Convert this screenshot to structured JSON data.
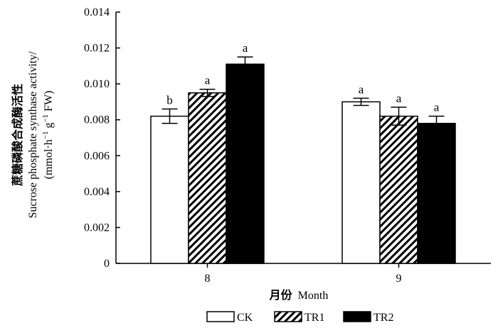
{
  "chart_data": {
    "type": "bar",
    "categories": [
      "8",
      "9"
    ],
    "series": [
      {
        "name": "CK",
        "values": [
          0.0082,
          0.009
        ],
        "errors": [
          0.0004,
          0.0002
        ],
        "letters": [
          "b",
          "a"
        ],
        "fill": "white"
      },
      {
        "name": "TR1",
        "values": [
          0.0095,
          0.0082
        ],
        "errors": [
          0.0002,
          0.0005
        ],
        "letters": [
          "a",
          "a"
        ],
        "fill": "hatch"
      },
      {
        "name": "TR2",
        "values": [
          0.0111,
          0.0078
        ],
        "errors": [
          0.0004,
          0.0004
        ],
        "letters": [
          "a",
          "a"
        ],
        "fill": "black"
      }
    ],
    "ylim": [
      0,
      0.014
    ],
    "yticks": [
      "0",
      "0.002",
      "0.004",
      "0.006",
      "0.008",
      "0.010",
      "0.012",
      "0.014"
    ],
    "ylabel": {
      "line1": "蔗糖磷酸合成酶活性",
      "line2": "Sucrose phosphate synthase activity/",
      "line3_prefix": "(mmol·h",
      "line3_sup1": "−1",
      "line3_mid": " g",
      "line3_sup2": "−1",
      "line3_suffix": " FW)"
    },
    "xlabel": {
      "cn": "月份",
      "en": "Month"
    },
    "legend_position": "bottom"
  },
  "colors": {
    "ink": "#000000",
    "paper": "#ffffff"
  }
}
